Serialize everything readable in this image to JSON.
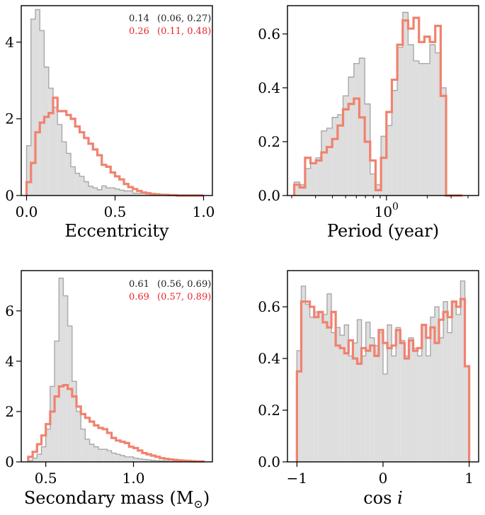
{
  "chart_data": [
    {
      "type": "histogram",
      "id": "ecc",
      "xlabel": "Eccentricity",
      "xscale": "linear",
      "xlim": [
        -0.03,
        1.05
      ],
      "ylim": [
        0,
        4.95
      ],
      "xticks": [
        {
          "v": 0.0,
          "label": "0.0"
        },
        {
          "v": 0.5,
          "label": "0.5"
        },
        {
          "v": 1.0,
          "label": "1.0"
        }
      ],
      "yticks": [
        {
          "v": 0,
          "label": "0"
        },
        {
          "v": 2,
          "label": "2"
        },
        {
          "v": 4,
          "label": "4"
        }
      ],
      "annotations": [
        {
          "value": "0.14",
          "interval": "(0.06, 0.27)",
          "color": "#222222"
        },
        {
          "value": "0.26",
          "interval": "(0.11, 0.48)",
          "color": "#e8262a"
        }
      ],
      "series": [
        {
          "name": "gray",
          "style": "filled",
          "edges": [
            0.0,
            0.025,
            0.05,
            0.075,
            0.1,
            0.125,
            0.15,
            0.175,
            0.2,
            0.225,
            0.25,
            0.275,
            0.3,
            0.325,
            0.35,
            0.375,
            0.4,
            0.425,
            0.45,
            0.475,
            0.5,
            0.525,
            0.55,
            0.575,
            0.6,
            0.625,
            0.65,
            0.675,
            0.7,
            0.725,
            0.75,
            0.775,
            0.8,
            0.825,
            0.85,
            0.875,
            0.9,
            0.925,
            0.95,
            0.975,
            1.0
          ],
          "values": [
            1.3,
            4.6,
            4.85,
            4.3,
            3.35,
            2.8,
            2.3,
            1.85,
            1.4,
            1.1,
            0.75,
            0.58,
            0.5,
            0.36,
            0.24,
            0.2,
            0.15,
            0.25,
            0.2,
            0.2,
            0.17,
            0.14,
            0.12,
            0.12,
            0.06,
            0.06,
            0.06,
            0.04,
            0.03,
            0.02,
            0.02,
            0.02,
            0.01,
            0.01,
            0.01,
            0,
            0,
            0,
            0,
            0
          ]
        },
        {
          "name": "red",
          "style": "step",
          "edges": [
            0.0,
            0.025,
            0.05,
            0.075,
            0.1,
            0.125,
            0.15,
            0.175,
            0.2,
            0.225,
            0.25,
            0.275,
            0.3,
            0.325,
            0.35,
            0.375,
            0.4,
            0.425,
            0.45,
            0.475,
            0.5,
            0.525,
            0.55,
            0.575,
            0.6,
            0.625,
            0.65,
            0.675,
            0.7,
            0.725,
            0.75,
            0.775,
            0.8,
            0.825,
            0.85,
            0.875,
            0.9,
            0.925,
            0.95,
            0.975,
            1.0
          ],
          "values": [
            0.35,
            0.85,
            1.65,
            1.9,
            2.05,
            2.15,
            2.55,
            2.2,
            2.2,
            2.1,
            2.0,
            1.8,
            1.65,
            1.5,
            1.35,
            1.2,
            1.05,
            0.8,
            0.75,
            0.6,
            0.5,
            0.42,
            0.3,
            0.22,
            0.17,
            0.12,
            0.08,
            0.06,
            0.04,
            0.03,
            0.02,
            0.02,
            0.01,
            0.01,
            0,
            0,
            0,
            0,
            0,
            0
          ]
        }
      ]
    },
    {
      "type": "histogram",
      "id": "period",
      "xlabel": "Period  (year)",
      "xscale": "log",
      "xlim": [
        -0.73,
        0.68
      ],
      "ylim": [
        0,
        0.705
      ],
      "xticks": [
        {
          "v": 0,
          "label": "10",
          "sup": "0"
        }
      ],
      "minor_xticks": [
        -0.699,
        -0.523,
        -0.398,
        -0.301,
        -0.222,
        -0.155,
        -0.097,
        -0.046,
        0.301,
        0.477,
        0.602
      ],
      "yticks": [
        {
          "v": 0,
          "label": "0.0"
        },
        {
          "v": 0.2,
          "label": "0.2"
        },
        {
          "v": 0.4,
          "label": "0.4"
        },
        {
          "v": 0.6,
          "label": "0.6"
        }
      ],
      "series": [
        {
          "name": "gray",
          "style": "filled",
          "edges": [
            -0.68,
            -0.64,
            -0.6,
            -0.56,
            -0.52,
            -0.48,
            -0.44,
            -0.4,
            -0.36,
            -0.32,
            -0.28,
            -0.24,
            -0.2,
            -0.16,
            -0.12,
            -0.08,
            -0.04,
            0.0,
            0.04,
            0.08,
            0.12,
            0.16,
            0.2,
            0.24,
            0.28,
            0.32,
            0.36,
            0.4,
            0.44,
            0.48,
            0.52,
            0.56
          ],
          "values": [
            0.05,
            0.04,
            0.1,
            0.12,
            0.14,
            0.24,
            0.25,
            0.29,
            0.3,
            0.37,
            0.44,
            0.49,
            0.51,
            0.34,
            0.08,
            0.04,
            0.22,
            0.26,
            0.39,
            0.55,
            0.68,
            0.56,
            0.5,
            0.49,
            0.49,
            0.56,
            0.53,
            0.4,
            0,
            0,
            0
          ]
        },
        {
          "name": "red",
          "style": "step",
          "edges": [
            -0.68,
            -0.64,
            -0.6,
            -0.56,
            -0.52,
            -0.48,
            -0.44,
            -0.4,
            -0.36,
            -0.32,
            -0.28,
            -0.24,
            -0.2,
            -0.16,
            -0.12,
            -0.08,
            -0.04,
            0.0,
            0.04,
            0.08,
            0.12,
            0.16,
            0.2,
            0.24,
            0.28,
            0.32,
            0.36,
            0.4,
            0.44,
            0.48,
            0.52,
            0.56
          ],
          "values": [
            0.04,
            0.03,
            0.14,
            0.12,
            0.13,
            0.16,
            0.18,
            0.21,
            0.26,
            0.32,
            0.34,
            0.36,
            0.29,
            0.2,
            0.13,
            0.02,
            0.14,
            0.31,
            0.43,
            0.56,
            0.65,
            0.62,
            0.66,
            0.57,
            0.59,
            0.57,
            0.63,
            0.37,
            0,
            0,
            0
          ]
        }
      ]
    },
    {
      "type": "histogram",
      "id": "mass",
      "xlabel": "Secondary mass (M",
      "xlabel_symbol": "⊙",
      "xlabel_close": ")",
      "xscale": "linear",
      "xlim": [
        0.36,
        1.45
      ],
      "ylim": [
        0,
        7.6
      ],
      "xticks": [
        {
          "v": 0.5,
          "label": "0.5"
        },
        {
          "v": 1.0,
          "label": "1.0"
        }
      ],
      "yticks": [
        {
          "v": 0,
          "label": "0"
        },
        {
          "v": 2,
          "label": "2"
        },
        {
          "v": 4,
          "label": "4"
        },
        {
          "v": 6,
          "label": "6"
        }
      ],
      "annotations": [
        {
          "value": "0.61",
          "interval": "(0.56, 0.69)",
          "color": "#222222"
        },
        {
          "value": "0.69",
          "interval": "(0.57, 0.89)",
          "color": "#e8262a"
        }
      ],
      "series": [
        {
          "name": "gray",
          "style": "filled",
          "edges": [
            0.4,
            0.425,
            0.45,
            0.475,
            0.5,
            0.525,
            0.55,
            0.575,
            0.6,
            0.625,
            0.65,
            0.675,
            0.7,
            0.725,
            0.75,
            0.775,
            0.8,
            0.825,
            0.85,
            0.875,
            0.9,
            0.925,
            0.95,
            0.975,
            1.0,
            1.025,
            1.05,
            1.075,
            1.1,
            1.125,
            1.15,
            1.175,
            1.2,
            1.225,
            1.25,
            1.275,
            1.3,
            1.325,
            1.35,
            1.375,
            1.4
          ],
          "values": [
            0.05,
            0.15,
            0.3,
            0.6,
            1.3,
            3.0,
            4.8,
            7.3,
            6.6,
            5.4,
            3.2,
            2.0,
            1.3,
            0.9,
            0.7,
            0.6,
            0.5,
            0.5,
            0.45,
            0.35,
            0.3,
            0.25,
            0.2,
            0.2,
            0.15,
            0.12,
            0.1,
            0.08,
            0.06,
            0.05,
            0.04,
            0.03,
            0.02,
            0.02,
            0.01,
            0.01,
            0.01,
            0,
            0,
            0
          ]
        },
        {
          "name": "red",
          "style": "step",
          "edges": [
            0.4,
            0.425,
            0.45,
            0.475,
            0.5,
            0.525,
            0.55,
            0.575,
            0.6,
            0.625,
            0.65,
            0.675,
            0.7,
            0.725,
            0.75,
            0.775,
            0.8,
            0.825,
            0.85,
            0.875,
            0.9,
            0.925,
            0.95,
            0.975,
            1.0,
            1.025,
            1.05,
            1.075,
            1.1,
            1.125,
            1.15,
            1.175,
            1.2,
            1.225,
            1.25,
            1.275,
            1.3,
            1.325,
            1.35,
            1.375,
            1.4
          ],
          "values": [
            0.2,
            0.4,
            0.7,
            1.05,
            1.5,
            2.0,
            2.6,
            3.0,
            3.05,
            2.9,
            2.6,
            2.2,
            1.9,
            1.75,
            1.6,
            1.45,
            1.35,
            1.3,
            1.15,
            0.95,
            0.85,
            0.8,
            0.75,
            0.6,
            0.55,
            0.45,
            0.35,
            0.3,
            0.25,
            0.2,
            0.15,
            0.12,
            0.1,
            0.08,
            0.06,
            0.05,
            0.04,
            0.03,
            0.02,
            0.02
          ]
        }
      ]
    },
    {
      "type": "histogram",
      "id": "cosi",
      "xlabel": "cos i",
      "xscale": "linear",
      "xlim": [
        -1.11,
        1.11
      ],
      "ylim": [
        0,
        0.74
      ],
      "xticks": [
        {
          "v": -1,
          "label": "−1"
        },
        {
          "v": 0,
          "label": "0"
        },
        {
          "v": 1,
          "label": "1"
        }
      ],
      "yticks": [
        {
          "v": 0,
          "label": "0.0"
        },
        {
          "v": 0.2,
          "label": "0.2"
        },
        {
          "v": 0.4,
          "label": "0.4"
        },
        {
          "v": 0.6,
          "label": "0.6"
        }
      ],
      "series": [
        {
          "name": "gray",
          "style": "filled",
          "edges": [
            -1.0,
            -0.95,
            -0.9,
            -0.85,
            -0.8,
            -0.75,
            -0.7,
            -0.65,
            -0.6,
            -0.55,
            -0.5,
            -0.45,
            -0.4,
            -0.35,
            -0.3,
            -0.25,
            -0.2,
            -0.15,
            -0.1,
            -0.05,
            0.0,
            0.05,
            0.1,
            0.15,
            0.2,
            0.25,
            0.3,
            0.35,
            0.4,
            0.45,
            0.5,
            0.55,
            0.6,
            0.65,
            0.7,
            0.75,
            0.8,
            0.85,
            0.9,
            0.95,
            1.0
          ],
          "values": [
            0.43,
            0.68,
            0.61,
            0.56,
            0.58,
            0.58,
            0.57,
            0.65,
            0.5,
            0.52,
            0.49,
            0.53,
            0.41,
            0.46,
            0.55,
            0.41,
            0.54,
            0.48,
            0.45,
            0.5,
            0.34,
            0.53,
            0.41,
            0.52,
            0.47,
            0.41,
            0.48,
            0.44,
            0.41,
            0.53,
            0.41,
            0.56,
            0.6,
            0.48,
            0.62,
            0.5,
            0.62,
            0.57,
            0.7,
            0.37
          ]
        },
        {
          "name": "red",
          "style": "step",
          "edges": [
            -1.0,
            -0.95,
            -0.9,
            -0.85,
            -0.8,
            -0.75,
            -0.7,
            -0.65,
            -0.6,
            -0.55,
            -0.5,
            -0.45,
            -0.4,
            -0.35,
            -0.3,
            -0.25,
            -0.2,
            -0.15,
            -0.1,
            -0.05,
            0.0,
            0.05,
            0.1,
            0.15,
            0.2,
            0.25,
            0.3,
            0.35,
            0.4,
            0.45,
            0.5,
            0.55,
            0.6,
            0.65,
            0.7,
            0.75,
            0.8,
            0.85,
            0.9,
            0.95,
            1.0
          ],
          "values": [
            0.35,
            0.62,
            0.62,
            0.6,
            0.56,
            0.58,
            0.54,
            0.52,
            0.58,
            0.45,
            0.44,
            0.42,
            0.47,
            0.4,
            0.38,
            0.44,
            0.43,
            0.45,
            0.41,
            0.51,
            0.46,
            0.44,
            0.45,
            0.51,
            0.46,
            0.4,
            0.47,
            0.43,
            0.44,
            0.53,
            0.48,
            0.52,
            0.46,
            0.55,
            0.58,
            0.56,
            0.62,
            0.6,
            0.63,
            0.37
          ]
        }
      ]
    }
  ],
  "colors": {
    "gray_fill": "#dedede",
    "gray_edge": "#a8a8a8",
    "red_line": "#f0826f",
    "red_text": "#e8262a",
    "dark_text": "#222222"
  }
}
